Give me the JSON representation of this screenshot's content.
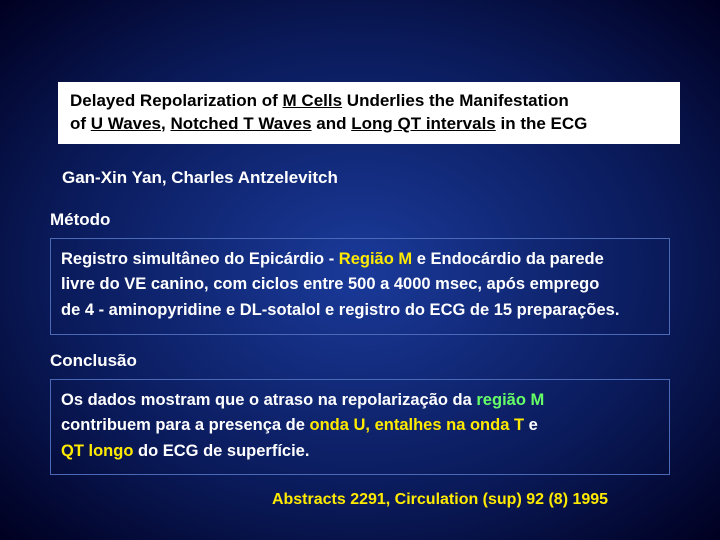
{
  "title": {
    "line1_a": "Delayed Repolarization of ",
    "line1_u": "M Cells",
    "line1_b": " Underlies the Manifestation",
    "line2_a": "of ",
    "line2_u1": "U Waves,",
    "line2_b": " ",
    "line2_u2": "Notched T Waves",
    "line2_c": " and ",
    "line2_u3": "Long QT intervals",
    "line2_d": " in the ECG"
  },
  "authors": "Gan-Xin Yan, Charles Antzelevitch",
  "metodo": {
    "heading": "Método",
    "line1_a": "Registro simultâneo do Epicárdio - ",
    "line1_h": "Região M",
    "line1_b": " e Endocárdio  da  parede",
    "line2": "livre do VE canino, com ciclos entre 500 a 4000 msec, após emprego",
    "line3": "de 4 - aminopyridine e DL-sotalol e registro do ECG de 15 preparações."
  },
  "conclusao": {
    "heading": "Conclusão",
    "line1_a": "Os dados mostram que o atraso na repolarização da ",
    "line1_h": "região M",
    "line2_a": "contribuem para a presença de ",
    "line2_h": "onda U, entalhes na onda T",
    "line2_b": " e",
    "line3_h": "QT longo",
    "line3_a": "  do ECG de superfície."
  },
  "citation": "Abstracts 2291, Circulation (sup) 92 (8) 1995",
  "colors": {
    "highlight": "#ffea00",
    "green": "#66ff66",
    "text": "#ffffff",
    "box_border": "#4a6ab8"
  }
}
